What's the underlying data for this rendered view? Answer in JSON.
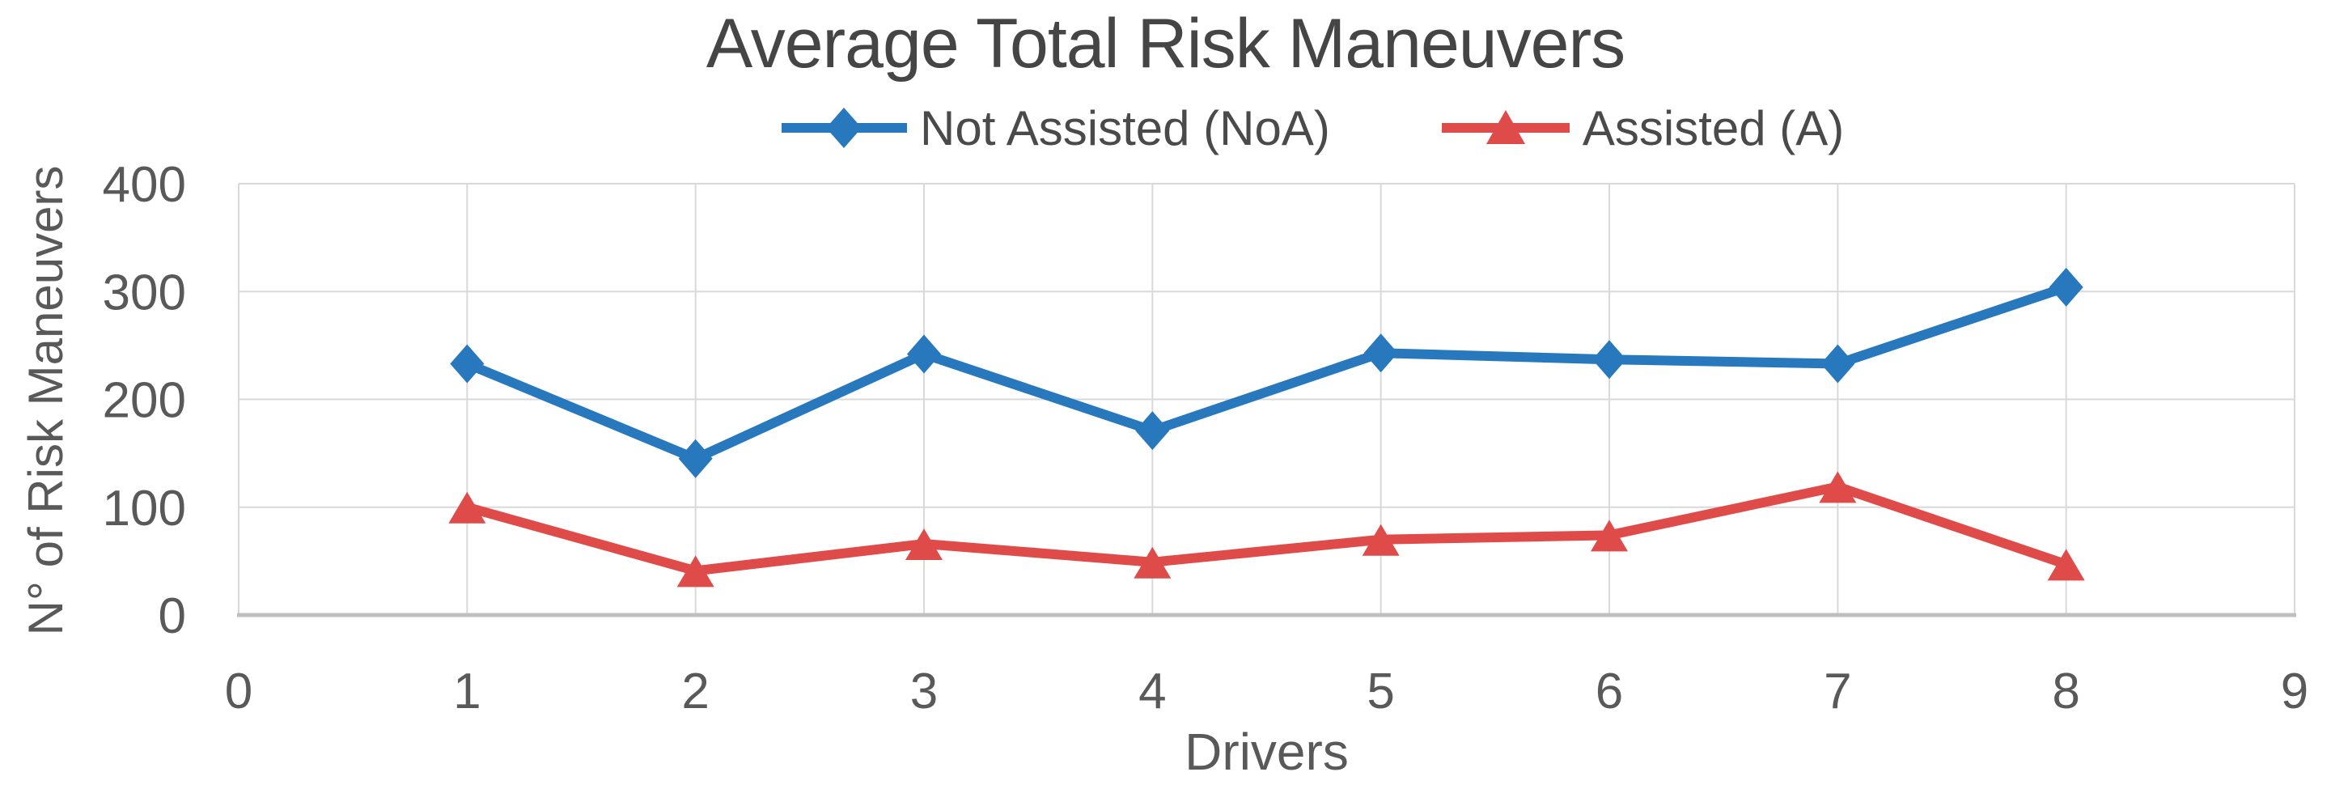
{
  "chart_data": {
    "type": "line",
    "title": "Average Total Risk Maneuvers",
    "xlabel": "Drivers",
    "ylabel": "N° of Risk Maneuvers",
    "x": [
      1,
      2,
      3,
      4,
      5,
      6,
      7,
      8
    ],
    "series": [
      {
        "name": "Not Assisted (NoA)",
        "color": "#2878BE",
        "marker": "diamond",
        "values": [
          233,
          145,
          242,
          171,
          243,
          237,
          233,
          304
        ]
      },
      {
        "name": "Assisted (A)",
        "color": "#DF4B49",
        "marker": "triangle",
        "values": [
          100,
          41,
          66,
          49,
          70,
          74,
          119,
          47
        ]
      }
    ],
    "xlim": [
      0,
      9
    ],
    "ylim": [
      0,
      400
    ],
    "xticks": [
      0,
      1,
      2,
      3,
      4,
      5,
      6,
      7,
      8,
      9
    ],
    "yticks": [
      0,
      100,
      200,
      300,
      400
    ],
    "grid": true,
    "legend_position": "top-center",
    "grid_color": "#D9D9D9",
    "axis_line_color": "#BFBFBF",
    "tick_text_color": "#595959",
    "title_color": "#454545",
    "background_color": "#FFFFFF"
  }
}
